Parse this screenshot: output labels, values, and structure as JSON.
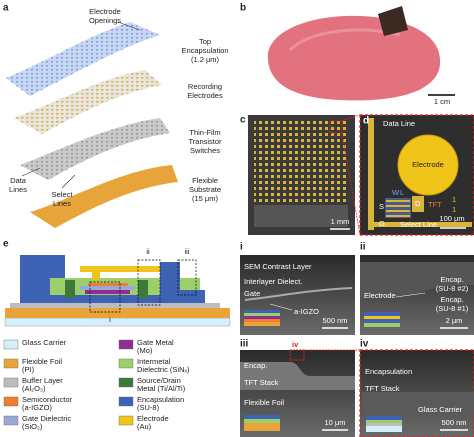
{
  "panel_a": {
    "label": "a",
    "electrode_openings": [
      "Electrode",
      "Openings"
    ],
    "top_encapsulation": [
      "Top",
      "Encapsulation",
      "(1.2 μm)"
    ],
    "recording_electrodes": [
      "Recording",
      "Electrodes"
    ],
    "tft_switches": [
      "Thin-Film",
      "Transistor",
      "Switches"
    ],
    "flexible_substrate": [
      "Flexible",
      "Substrate",
      "(15 μm)"
    ],
    "data_lines": [
      "Data",
      "Lines"
    ],
    "select_lines": [
      "Select",
      "Lines"
    ]
  },
  "panel_b": {
    "label": "b",
    "scale_bar": "1 cm"
  },
  "panel_c": {
    "label": "c",
    "scale_bar": "1 mm"
  },
  "panel_d": {
    "label": "d",
    "data_line": "Data Line",
    "electrode": "Electrode",
    "select_line": "Select Line",
    "scale_bar": "100 μm",
    "source": "S",
    "drain": "D",
    "gate": "G",
    "tft": "TFT",
    "width": "W",
    "length": "L",
    "ratio": [
      "1",
      "1"
    ]
  },
  "panel_e": {
    "label": "e",
    "callouts": [
      "ii",
      "iii",
      "i"
    ],
    "legend": [
      {
        "name": "Glass Carrier",
        "color": "#d6eef8"
      },
      {
        "name": "Gate Metal",
        "detail": "(Mo)",
        "color": "#8e2f8f"
      },
      {
        "name": "Flexible Foil",
        "detail": "(PI)",
        "color": "#e8a33a"
      },
      {
        "name": "Intermetal",
        "detail": "Dielectric (SiNₓ)",
        "color": "#9ccf6a"
      },
      {
        "name": "Buffer Layer",
        "detail": "(Al₂O₃)",
        "color": "#bdbdbd"
      },
      {
        "name": "Source/Drain",
        "detail": "Metal (Ti/Al/Ti)",
        "color": "#3d7a3a"
      },
      {
        "name": "Semiconductor",
        "detail": "(a-IGZO)",
        "color": "#ef7d32"
      },
      {
        "name": "Encapsulation",
        "detail": "(SU-8)",
        "color": "#3e63b5"
      },
      {
        "name": "Gate Dielectric",
        "detail": "(SiO₂)",
        "color": "#9aa8d6"
      },
      {
        "name": "Electrode",
        "detail": "(Au)",
        "color": "#f2c318"
      }
    ]
  },
  "panel_i": {
    "label": "i",
    "sem_contrast": "SEM Contrast Layer",
    "interlayer": "Interlayer Dielect.",
    "gate": "Gate",
    "igzo": "a-IGZO",
    "scale_bar": "500 nm"
  },
  "panel_ii": {
    "label": "ii",
    "encap2": [
      "Encap.",
      "(SU-8 #2)"
    ],
    "electrode": "Electrode",
    "encap1": [
      "Encap.",
      "(SU-8 #1)"
    ],
    "scale_bar": "2 μm"
  },
  "panel_iii": {
    "label": "iii",
    "encap": "Encap.",
    "tft_stack": "TFT Stack",
    "flexible_foil": "Flexible Foil",
    "scale_bar": "10 μm",
    "zoom": "iv"
  },
  "panel_iv": {
    "label": "iv",
    "encapsulation": "Encapsulation",
    "tft_stack": "TFT Stack",
    "glass_carrier": "Glass Carrier",
    "scale_bar": "500 nm"
  }
}
